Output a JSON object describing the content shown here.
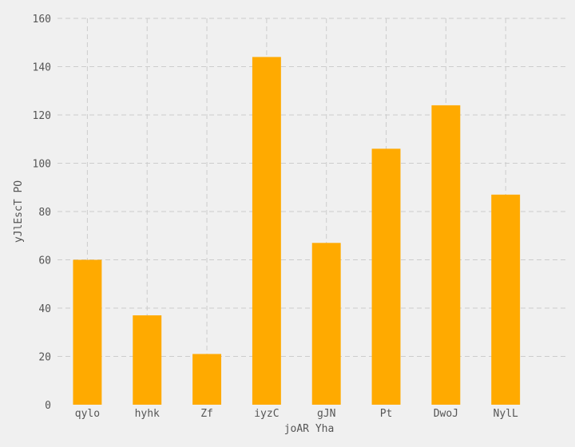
{
  "chart_data": {
    "type": "bar",
    "title": "",
    "xlabel": "joAR  Yha",
    "ylabel": "yJlEscT PO",
    "categories": [
      "qylo",
      "hyhk",
      "Zf",
      "iyzC",
      "gJN",
      "Pt",
      "DwoJ",
      "NylL"
    ],
    "values": [
      60,
      37,
      21,
      144,
      67,
      106,
      124,
      87
    ],
    "ylim": [
      0,
      160
    ],
    "yticks": [
      0,
      20,
      40,
      60,
      80,
      100,
      120,
      140,
      160
    ],
    "xlim": [
      -0.25,
      8.25
    ],
    "grid": true,
    "bar_color": "#ffaa00",
    "background_color": "#f0f0f0"
  }
}
